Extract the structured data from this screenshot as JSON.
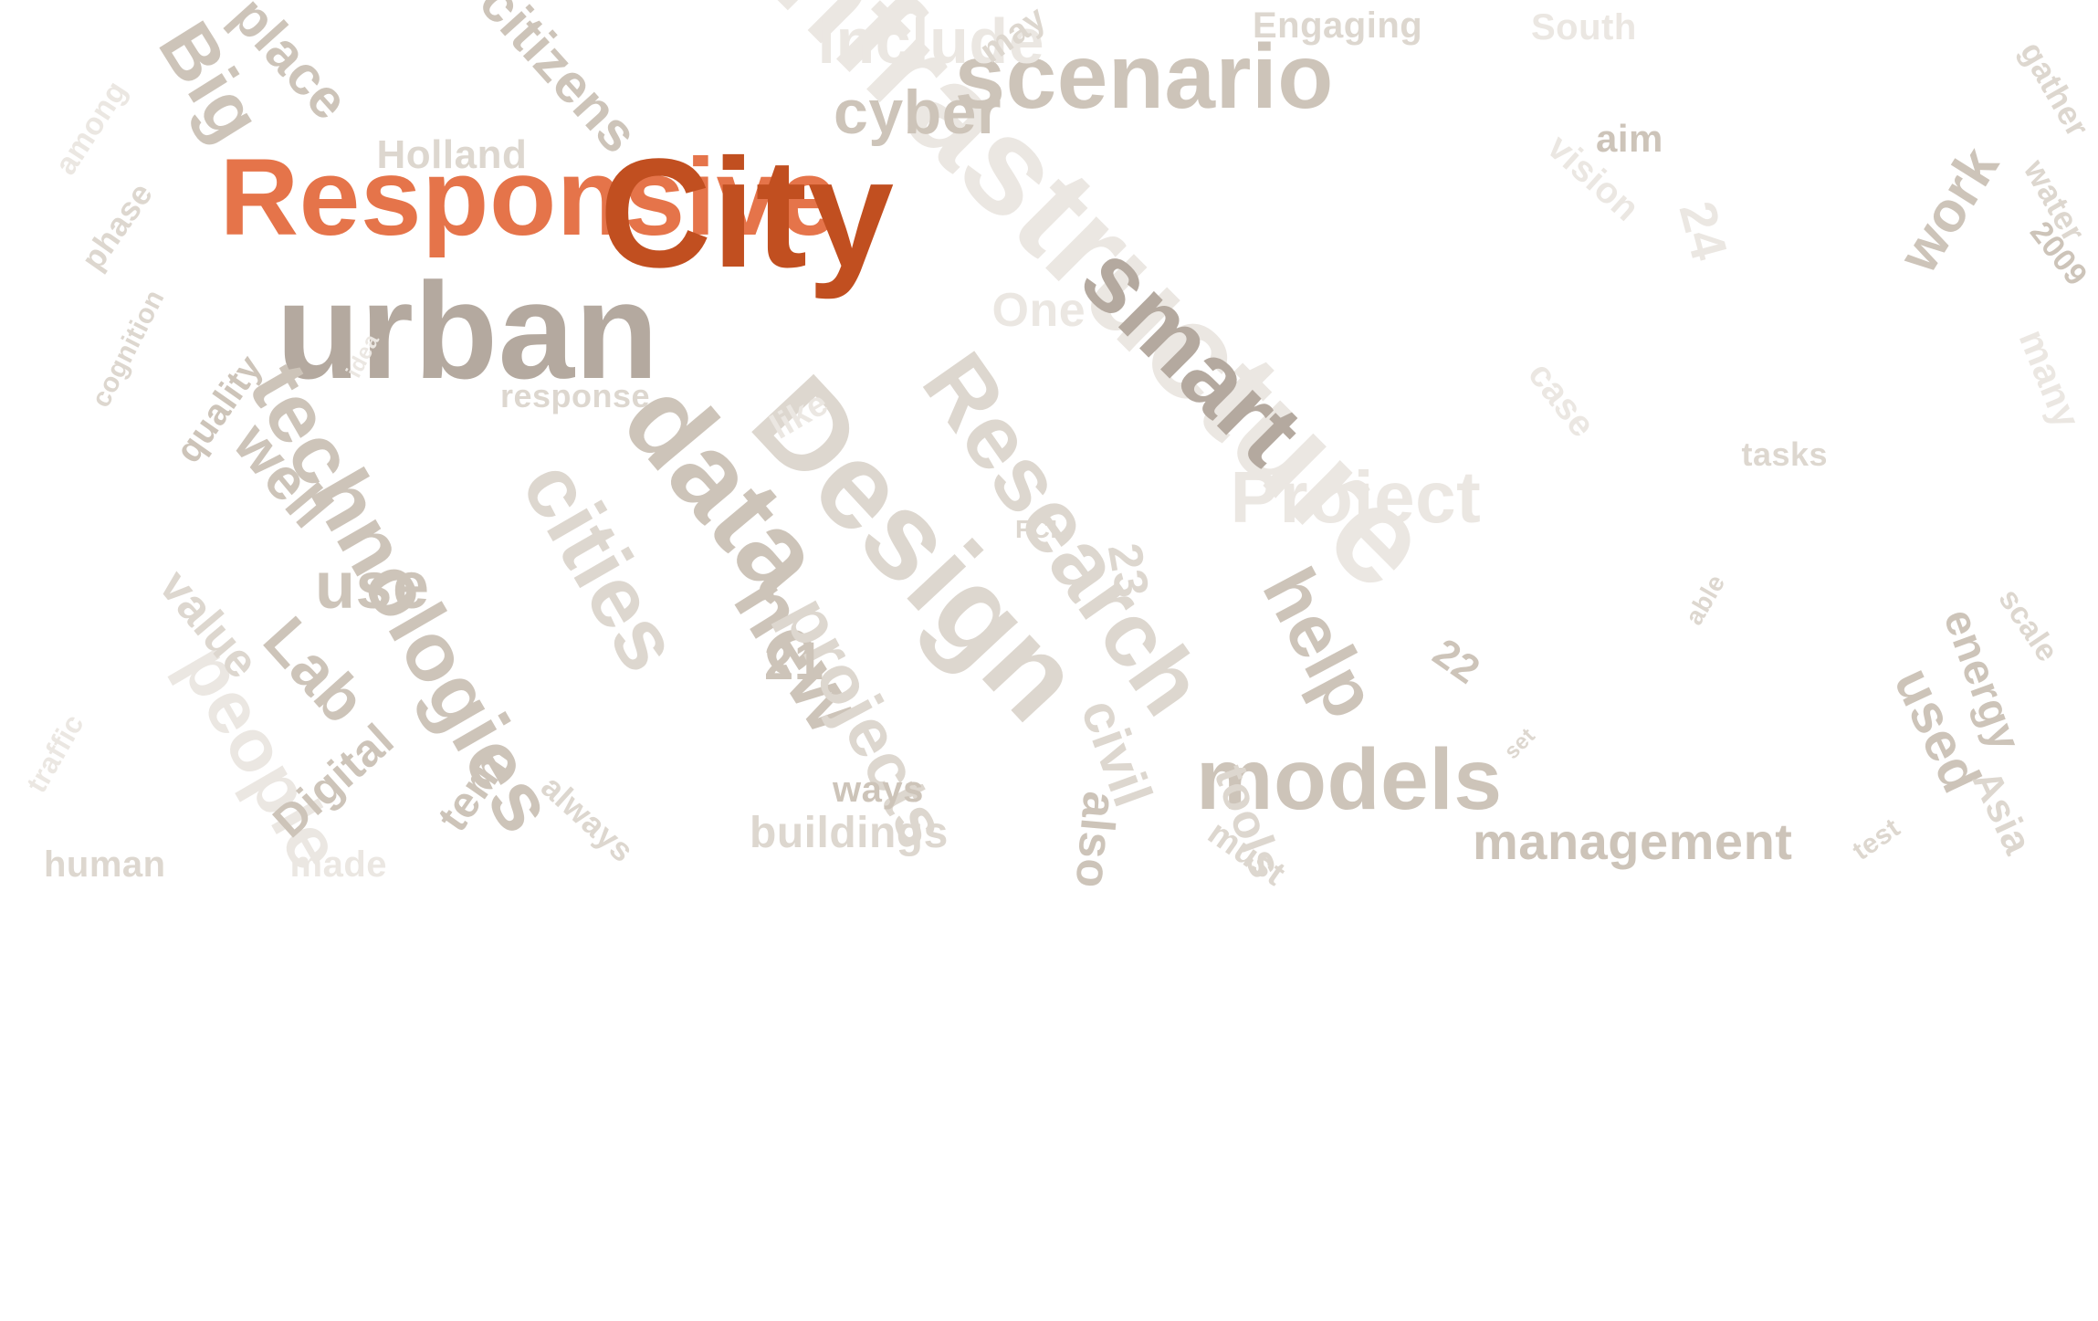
{
  "word_cloud": {
    "background": "#ffffff",
    "palette": {
      "highlight_dark": "#c14f20",
      "highlight_light": "#e5744a",
      "dark_taupe": "#b4a99f",
      "taupe": "#cdc4b9",
      "light_taupe": "#ddd7cf",
      "pale": "#ebe7e2"
    },
    "words": [
      {
        "text": "Responsive",
        "color": "#e5744a"
      },
      {
        "text": "City",
        "color": "#c14f20"
      },
      {
        "text": "urban",
        "color": "#b4a99f"
      },
      {
        "text": "infrastructure",
        "color": "#ebe7e2"
      },
      {
        "text": "scenario",
        "color": "#cdc4b9"
      },
      {
        "text": "Design",
        "color": "#ddd7cf"
      },
      {
        "text": "data",
        "color": "#cdc4b9"
      },
      {
        "text": "Research",
        "color": "#ddd7cf"
      },
      {
        "text": "smart",
        "color": "#b4a99f"
      },
      {
        "text": "technologies",
        "color": "#cdc4b9"
      },
      {
        "text": "cities",
        "color": "#ddd7cf"
      },
      {
        "text": "new",
        "color": "#cdc4b9"
      },
      {
        "text": "projects",
        "color": "#ddd7cf"
      },
      {
        "text": "models",
        "color": "#cdc4b9"
      },
      {
        "text": "Project",
        "color": "#ebe7e2"
      },
      {
        "text": "help",
        "color": "#cdc4b9"
      },
      {
        "text": "people",
        "color": "#ebe7e2"
      },
      {
        "text": "Lab",
        "color": "#cdc4b9"
      },
      {
        "text": "use",
        "color": "#cdc4b9"
      },
      {
        "text": "well",
        "color": "#cdc4b9"
      },
      {
        "text": "Big",
        "color": "#cdc4b9"
      },
      {
        "text": "place",
        "color": "#cdc4b9"
      },
      {
        "text": "citizens",
        "color": "#cdc4b9"
      },
      {
        "text": "include",
        "color": "#ebe7e2"
      },
      {
        "text": "cyber",
        "color": "#cdc4b9"
      },
      {
        "text": "Holland",
        "color": "#ddd7cf"
      },
      {
        "text": "may",
        "color": "#ddd7cf"
      },
      {
        "text": "Engaging",
        "color": "#ddd7cf"
      },
      {
        "text": "South",
        "color": "#ebe7e2"
      },
      {
        "text": "gather",
        "color": "#ddd7cf"
      },
      {
        "text": "aim",
        "color": "#cdc4b9"
      },
      {
        "text": "vision",
        "color": "#ebe7e2"
      },
      {
        "text": "24",
        "color": "#ebe7e2"
      },
      {
        "text": "work",
        "color": "#cdc4b9"
      },
      {
        "text": "water",
        "color": "#ddd7cf"
      },
      {
        "text": "2009",
        "color": "#cdc4b9"
      },
      {
        "text": "many",
        "color": "#ebe7e2"
      },
      {
        "text": "among",
        "color": "#ebe7e2"
      },
      {
        "text": "phase",
        "color": "#ddd7cf"
      },
      {
        "text": "cognition",
        "color": "#ddd7cf"
      },
      {
        "text": "quality",
        "color": "#cdc4b9"
      },
      {
        "text": "idea",
        "color": "#ebe7e2"
      },
      {
        "text": "One",
        "color": "#ebe7e2"
      },
      {
        "text": "response",
        "color": "#ddd7cf"
      },
      {
        "text": "like",
        "color": "#ebe7e2"
      },
      {
        "text": "case",
        "color": "#ebe7e2"
      },
      {
        "text": "tasks",
        "color": "#ddd7cf"
      },
      {
        "text": "FCL",
        "color": "#ddd7cf"
      },
      {
        "text": "23",
        "color": "#ddd7cf"
      },
      {
        "text": "value",
        "color": "#ddd7cf"
      },
      {
        "text": "21",
        "color": "#cdc4b9"
      },
      {
        "text": "ways",
        "color": "#cdc4b9"
      },
      {
        "text": "civil",
        "color": "#ddd7cf"
      },
      {
        "text": "tools",
        "color": "#ddd7cf"
      },
      {
        "text": "22",
        "color": "#cdc4b9"
      },
      {
        "text": "set",
        "color": "#ddd7cf"
      },
      {
        "text": "able",
        "color": "#ddd7cf"
      },
      {
        "text": "used",
        "color": "#cdc4b9"
      },
      {
        "text": "energy",
        "color": "#cdc4b9"
      },
      {
        "text": "scale",
        "color": "#ddd7cf"
      },
      {
        "text": "Asia",
        "color": "#ddd7cf"
      },
      {
        "text": "test",
        "color": "#ddd7cf"
      },
      {
        "text": "management",
        "color": "#cdc4b9"
      },
      {
        "text": "must",
        "color": "#ddd7cf"
      },
      {
        "text": "also",
        "color": "#cdc4b9"
      },
      {
        "text": "buildings",
        "color": "#ddd7cf"
      },
      {
        "text": "always",
        "color": "#ddd7cf"
      },
      {
        "text": "term",
        "color": "#cdc4b9"
      },
      {
        "text": "Digital",
        "color": "#cdc4b9"
      },
      {
        "text": "made",
        "color": "#ebe7e2"
      },
      {
        "text": "human",
        "color": "#ddd7cf"
      },
      {
        "text": "traffic",
        "color": "#ebe7e2"
      }
    ]
  }
}
